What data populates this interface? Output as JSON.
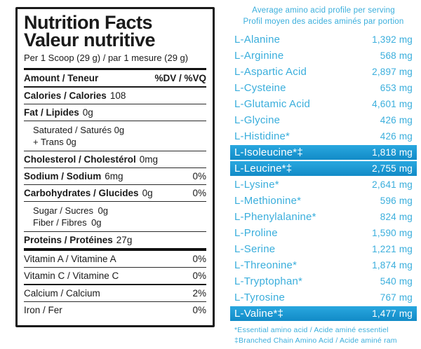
{
  "colors": {
    "accent": "#3AAEDC",
    "highlight_top": "#29A7DF",
    "highlight_bottom": "#128BC7",
    "ink": "#1a1a1a"
  },
  "nutrition_label": {
    "title_en": "Nutrition Facts",
    "title_fr": "Valeur nutritive",
    "serving": "Per 1 Scoop (29 g) / par 1 mesure (29 g)",
    "header": {
      "amount": "Amount / Teneur",
      "dv": "%DV / %VQ"
    },
    "rows": [
      {
        "label": "Calories / Calories",
        "value": "108",
        "dv": ""
      },
      {
        "label": "Fat / Lipides",
        "value": "0g",
        "dv": ""
      },
      {
        "sub_lines": [
          "Saturated / Saturés 0g",
          "+ Trans  0g"
        ]
      },
      {
        "label": "Cholesterol / Cholestérol",
        "value": "0mg",
        "dv": ""
      },
      {
        "label": "Sodium / Sodium",
        "value": "6mg",
        "dv": "0%"
      },
      {
        "label": "Carbohydrates / Glucides",
        "value": "0g",
        "dv": "0%"
      },
      {
        "sub_lines": [
          "Sugar / Sucres 0g",
          "Fiber / Fibres 0g"
        ]
      },
      {
        "label": "Proteins / Protéines",
        "value": "27g",
        "dv": ""
      }
    ],
    "micros": [
      {
        "label": "Vitamin A / Vitamine A",
        "dv": "0%"
      },
      {
        "label": "Vitamin C / Vitamine C",
        "dv": "0%"
      },
      {
        "label": "Calcium / Calcium",
        "dv": "2%"
      },
      {
        "label": "Iron / Fer",
        "dv": "0%"
      }
    ]
  },
  "amino_profile": {
    "header_en": "Average amino acid profile per serving",
    "header_fr": "Profil moyen des acides aminés par portion",
    "rows": [
      {
        "label": "L-Alanine",
        "value": "1,392 mg",
        "highlight": false
      },
      {
        "label": "L-Arginine",
        "value": "568 mg",
        "highlight": false
      },
      {
        "label": "L-Aspartic Acid",
        "value": "2,897 mg",
        "highlight": false
      },
      {
        "label": "L-Cysteine",
        "value": "653 mg",
        "highlight": false
      },
      {
        "label": "L-Glutamic Acid",
        "value": "4,601 mg",
        "highlight": false
      },
      {
        "label": "L-Glycine",
        "value": "426 mg",
        "highlight": false
      },
      {
        "label": "L-Histidine*",
        "value": "426 mg",
        "highlight": false
      },
      {
        "label": "L-Isoleucine*‡",
        "value": "1,818 mg",
        "highlight": true
      },
      {
        "label": "L-Leucine*‡",
        "value": "2,755 mg",
        "highlight": true
      },
      {
        "label": "L-Lysine*",
        "value": "2,641 mg",
        "highlight": false
      },
      {
        "label": "L-Methionine*",
        "value": "596 mg",
        "highlight": false
      },
      {
        "label": "L-Phenylalanine*",
        "value": "824 mg",
        "highlight": false
      },
      {
        "label": "L-Proline",
        "value": "1,590 mg",
        "highlight": false
      },
      {
        "label": "L-Serine",
        "value": "1,221 mg",
        "highlight": false
      },
      {
        "label": "L-Threonine*",
        "value": "1,874 mg",
        "highlight": false
      },
      {
        "label": "L-Tryptophan*",
        "value": "540 mg",
        "highlight": false
      },
      {
        "label": "L-Tyrosine",
        "value": "767 mg",
        "highlight": false
      },
      {
        "label": "L-Valine*‡",
        "value": "1,477 mg",
        "highlight": true
      }
    ],
    "footnotes": [
      "*Essential amino acid / Acide aminé essentiel",
      "‡Branched Chain Amino Acid / Acide aminé ram"
    ]
  }
}
